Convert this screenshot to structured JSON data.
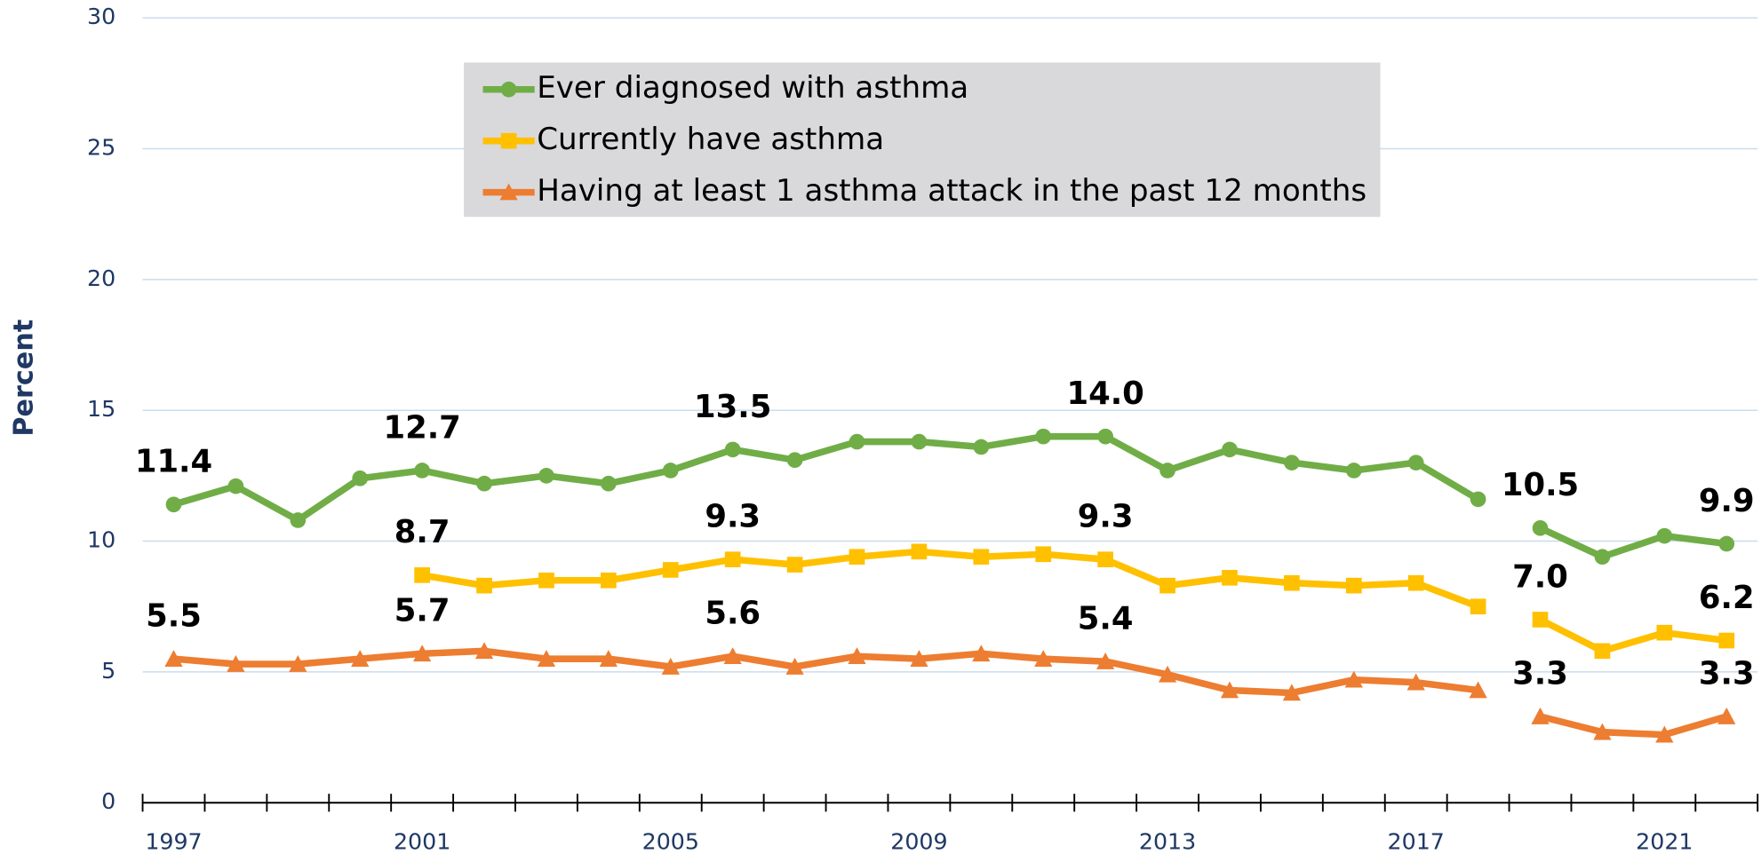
{
  "chart_data": {
    "type": "line",
    "y_label": "Percent",
    "x": [
      "1997",
      null,
      null,
      null,
      "2001",
      null,
      null,
      null,
      "2005",
      null,
      null,
      null,
      "2009",
      null,
      null,
      null,
      "2013",
      null,
      null,
      null,
      "2017",
      null,
      null,
      null,
      "2021",
      null
    ],
    "series_break_index": 22,
    "series": [
      {
        "name": "Ever diagnosed with asthma",
        "color": "#70ad47",
        "marker": "circle",
        "values": [
          11.4,
          12.1,
          10.8,
          12.4,
          12.7,
          12.2,
          12.5,
          12.2,
          12.7,
          13.5,
          13.1,
          13.8,
          13.8,
          13.6,
          14.0,
          14.0,
          12.7,
          13.5,
          13.0,
          12.7,
          13.0,
          11.6,
          10.5,
          9.4,
          10.2,
          9.9
        ],
        "value_labels": [
          "11.4",
          null,
          null,
          null,
          "12.7",
          null,
          null,
          null,
          null,
          "13.5",
          null,
          null,
          null,
          null,
          null,
          "14.0",
          null,
          null,
          null,
          null,
          null,
          null,
          "10.5",
          null,
          null,
          "9.9"
        ]
      },
      {
        "name": "Currently have asthma",
        "color": "#ffc000",
        "marker": "square",
        "values": [
          null,
          null,
          null,
          null,
          8.7,
          8.3,
          8.5,
          8.5,
          8.9,
          9.3,
          9.1,
          9.4,
          9.6,
          9.4,
          9.5,
          9.3,
          8.3,
          8.6,
          8.4,
          8.3,
          8.4,
          7.5,
          7.0,
          5.8,
          6.5,
          6.2
        ],
        "value_labels": [
          null,
          null,
          null,
          null,
          "8.7",
          null,
          null,
          null,
          null,
          "9.3",
          null,
          null,
          null,
          null,
          null,
          "9.3",
          null,
          null,
          null,
          null,
          null,
          null,
          "7.0",
          null,
          null,
          "6.2"
        ]
      },
      {
        "name": "Having at least 1 asthma attack in the past 12 months",
        "color": "#ed7d31",
        "marker": "triangle",
        "values": [
          5.5,
          5.3,
          5.3,
          5.5,
          5.7,
          5.8,
          5.5,
          5.5,
          5.2,
          5.6,
          5.2,
          5.6,
          5.5,
          5.7,
          5.5,
          5.4,
          4.9,
          4.3,
          4.2,
          4.7,
          4.6,
          4.3,
          3.3,
          2.7,
          2.6,
          3.3
        ],
        "value_labels": [
          "5.5",
          null,
          null,
          null,
          "5.7",
          null,
          null,
          null,
          null,
          "5.6",
          null,
          null,
          null,
          null,
          null,
          "5.4",
          null,
          null,
          null,
          null,
          null,
          null,
          "3.3",
          null,
          null,
          "3.3"
        ]
      }
    ],
    "ylim": [
      0,
      30
    ],
    "yticks": [
      0,
      5,
      10,
      15,
      20,
      25,
      30
    ],
    "grid": true
  }
}
